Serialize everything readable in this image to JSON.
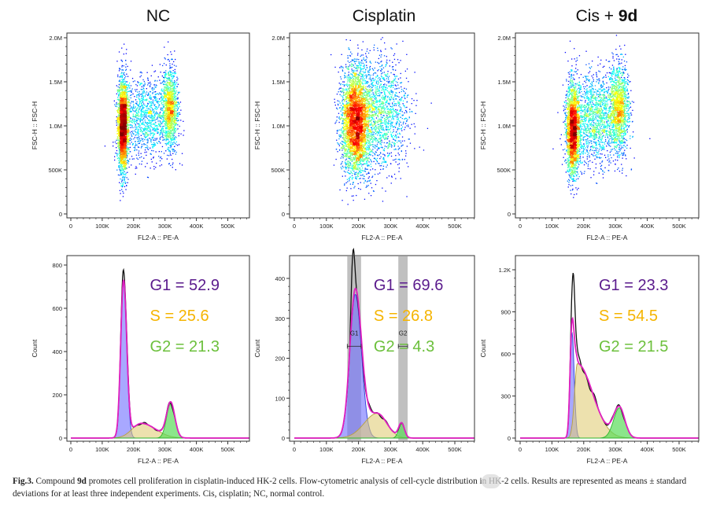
{
  "figure": {
    "panels": [
      {
        "title": "NC",
        "title_bold": ""
      },
      {
        "title": "Cisplatin",
        "title_bold": ""
      },
      {
        "title": "Cis + ",
        "title_bold": "9d"
      }
    ],
    "caption": {
      "label": "Fig.3.",
      "text1": " Compound ",
      "bold": "9d",
      "text2": " promotes cell proliferation in cisplatin-induced HK-2 cells. Flow-cytometric analysis of cell-cycle distribution in HK-2 cells. Results are represented as means ± standard deviations for at least three independent experiments. Cis, cisplatin; NC, normal control."
    },
    "watermark": "公众号 · 康旭禾生物"
  },
  "colors": {
    "g1": "#5a1a8c",
    "s": "#f5b400",
    "g2": "#6cc03c",
    "fit": "#e01fc0",
    "data": "#111111"
  },
  "chart_data": [
    {
      "type": "scatter",
      "title": "NC",
      "xlabel": "FL2-A :: PE-A",
      "ylabel": "FSC-H :: FSC-H",
      "x_ticks": [
        "0",
        "100K",
        "200K",
        "300K",
        "400K",
        "500K"
      ],
      "x_tick_values": [
        0,
        100000,
        200000,
        300000,
        400000,
        500000
      ],
      "y_ticks": [
        "0",
        "500K",
        "1.0M",
        "1.5M",
        "2.0M"
      ],
      "y_tick_values": [
        0,
        500000,
        1000000,
        1500000,
        2000000
      ],
      "colormap": "jet density",
      "populations": [
        {
          "x": 165000,
          "y": 1000000,
          "sd_x": 8000,
          "sd_y": 220000,
          "weight": 0.55
        },
        {
          "x": 240000,
          "y": 1100000,
          "sd_x": 40000,
          "sd_y": 200000,
          "weight": 0.22
        },
        {
          "x": 315000,
          "y": 1200000,
          "sd_x": 12000,
          "sd_y": 200000,
          "weight": 0.23
        }
      ]
    },
    {
      "type": "scatter",
      "title": "Cisplatin",
      "xlabel": "FL2-A :: PE-A",
      "ylabel": "FSC-H :: FSC-H",
      "x_ticks": [
        "0",
        "100K",
        "200K",
        "300K",
        "400K",
        "500K"
      ],
      "x_tick_values": [
        0,
        100000,
        200000,
        300000,
        400000,
        500000
      ],
      "y_ticks": [
        "0",
        "500K",
        "1.0M",
        "1.5M",
        "2.0M"
      ],
      "y_tick_values": [
        0,
        500000,
        1000000,
        1500000,
        2000000
      ],
      "colormap": "jet density",
      "populations": [
        {
          "x": 190000,
          "y": 1050000,
          "sd_x": 22000,
          "sd_y": 260000,
          "weight": 0.7
        },
        {
          "x": 265000,
          "y": 1150000,
          "sd_x": 45000,
          "sd_y": 280000,
          "weight": 0.3
        }
      ]
    },
    {
      "type": "scatter",
      "title": "Cis + 9d",
      "xlabel": "FL2-A :: PE-A",
      "ylabel": "FSC-H :: FSC-H",
      "x_ticks": [
        "0",
        "100K",
        "200K",
        "300K",
        "400K",
        "500K"
      ],
      "x_tick_values": [
        0,
        100000,
        200000,
        300000,
        400000,
        500000
      ],
      "y_ticks": [
        "0",
        "500K",
        "1.0M",
        "1.5M",
        "2.0M"
      ],
      "y_tick_values": [
        0,
        500000,
        1000000,
        1500000,
        2000000
      ],
      "colormap": "jet density",
      "populations": [
        {
          "x": 165000,
          "y": 950000,
          "sd_x": 10000,
          "sd_y": 220000,
          "weight": 0.45
        },
        {
          "x": 235000,
          "y": 1100000,
          "sd_x": 40000,
          "sd_y": 220000,
          "weight": 0.3
        },
        {
          "x": 310000,
          "y": 1200000,
          "sd_x": 15000,
          "sd_y": 220000,
          "weight": 0.25
        }
      ]
    },
    {
      "type": "area",
      "title": "NC",
      "xlabel": "FL2-A :: PE-A",
      "ylabel": "Count",
      "x_ticks": [
        "0",
        "100K",
        "200K",
        "300K",
        "400K",
        "500K"
      ],
      "x_tick_values": [
        0,
        100000,
        200000,
        300000,
        400000,
        500000
      ],
      "y_ticks": [
        "0",
        "200",
        "400",
        "600",
        "800"
      ],
      "y_tick_values": [
        0,
        200,
        400,
        600,
        800
      ],
      "annotations": [
        {
          "phase": "G1",
          "value": 52.9,
          "text": "G1 = 52.9"
        },
        {
          "phase": "S",
          "value": 25.6,
          "text": "S = 25.6"
        },
        {
          "phase": "G2",
          "value": 21.3,
          "text": "G2 = 21.3"
        }
      ],
      "components": [
        {
          "phase": "G1",
          "mean": 168000,
          "sd_left": 9000,
          "sd_right": 10000,
          "peak": 720
        },
        {
          "phase": "S",
          "mean": 225000,
          "sd_left": 30000,
          "sd_right": 45000,
          "peak": 68
        },
        {
          "phase": "G2",
          "mean": 318000,
          "sd_left": 13000,
          "sd_right": 13000,
          "peak": 160
        }
      ],
      "data_peak": {
        "x": 166000,
        "count": 800
      },
      "gates": []
    },
    {
      "type": "area",
      "title": "Cisplatin",
      "xlabel": "FL2-A :: PE-A",
      "ylabel": "Count",
      "x_ticks": [
        "0",
        "100K",
        "200K",
        "300K",
        "400K",
        "500K"
      ],
      "x_tick_values": [
        0,
        100000,
        200000,
        300000,
        400000,
        500000
      ],
      "y_ticks": [
        "0",
        "100",
        "200",
        "300",
        "400"
      ],
      "y_tick_values": [
        0,
        100,
        200,
        300,
        400
      ],
      "annotations": [
        {
          "phase": "G1",
          "value": 69.6,
          "text": "G1 = 69.6"
        },
        {
          "phase": "S",
          "value": 26.8,
          "text": "S = 26.8"
        },
        {
          "phase": "G2",
          "value": 4.3,
          "text": "G2 = 4.3"
        }
      ],
      "components": [
        {
          "phase": "G1",
          "mean": 190000,
          "sd_left": 17000,
          "sd_right": 19000,
          "peak": 360
        },
        {
          "phase": "S",
          "mean": 258000,
          "sd_left": 40000,
          "sd_right": 30000,
          "peak": 62
        },
        {
          "phase": "G2",
          "mean": 334000,
          "sd_left": 9000,
          "sd_right": 9000,
          "peak": 36
        }
      ],
      "data_peak": {
        "x": 182000,
        "count": 430
      },
      "gates": [
        {
          "label": "G1",
          "range": [
            165000,
            208000
          ],
          "count": 230
        },
        {
          "label": "G2",
          "range": [
            324000,
            353000
          ],
          "count": 230
        }
      ]
    },
    {
      "type": "area",
      "title": "Cis + 9d",
      "xlabel": "FL2-A :: PE-A",
      "ylabel": "Count",
      "x_ticks": [
        "0",
        "100K",
        "200K",
        "300K",
        "400K",
        "500K"
      ],
      "x_tick_values": [
        0,
        100000,
        200000,
        300000,
        400000,
        500000
      ],
      "y_ticks": [
        "0",
        "300",
        "600",
        "900",
        "1.2K"
      ],
      "y_tick_values": [
        0,
        300,
        600,
        900,
        1200
      ],
      "annotations": [
        {
          "phase": "G1",
          "value": 23.3,
          "text": "G1 = 23.3"
        },
        {
          "phase": "S",
          "value": 54.5,
          "text": "S = 54.5"
        },
        {
          "phase": "G2",
          "value": 21.5,
          "text": "G2 = 21.5"
        }
      ],
      "components": [
        {
          "phase": "G1",
          "mean": 163000,
          "sd_left": 6000,
          "sd_right": 7000,
          "peak": 750
        },
        {
          "phase": "S",
          "mean": 180000,
          "sd_left": 9000,
          "sd_right": 48000,
          "peak": 530
        },
        {
          "phase": "G2",
          "mean": 312000,
          "sd_left": 18000,
          "sd_right": 17000,
          "peak": 215
        }
      ],
      "data_peak": {
        "x": 168000,
        "count": 1200
      },
      "gates": []
    }
  ]
}
